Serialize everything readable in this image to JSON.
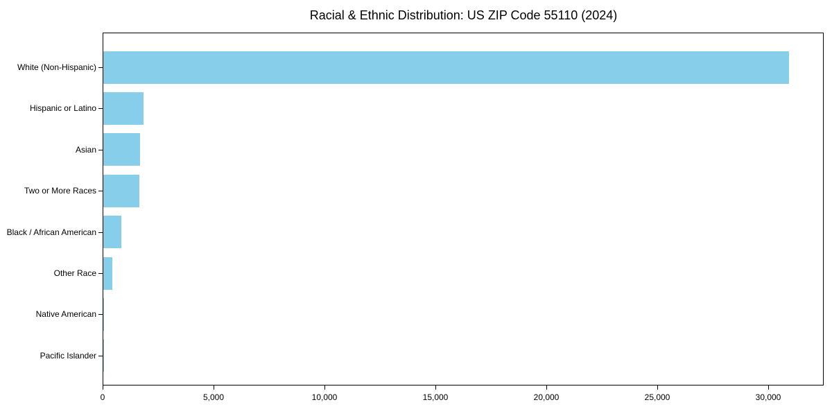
{
  "chart_data": {
    "type": "bar",
    "orientation": "horizontal",
    "title": "Racial & Ethnic Distribution: US ZIP Code 55110 (2024)",
    "xlabel": "",
    "ylabel": "",
    "categories": [
      "White (Non-Hispanic)",
      "Hispanic or Latino",
      "Asian",
      "Two or More Races",
      "Black / African American",
      "Other Race",
      "Native American",
      "Pacific Islander"
    ],
    "values": [
      30900,
      1805,
      1650,
      1610,
      825,
      415,
      25,
      10
    ],
    "xlim": [
      0,
      32500
    ],
    "x_ticks": [
      0,
      5000,
      10000,
      15000,
      20000,
      25000,
      30000
    ],
    "x_tick_labels": [
      "0",
      "5,000",
      "10,000",
      "15,000",
      "20,000",
      "25,000",
      "30,000"
    ],
    "bar_color": "#87CEEB",
    "background_color": "#ffffff",
    "grid": false,
    "legend": null
  }
}
